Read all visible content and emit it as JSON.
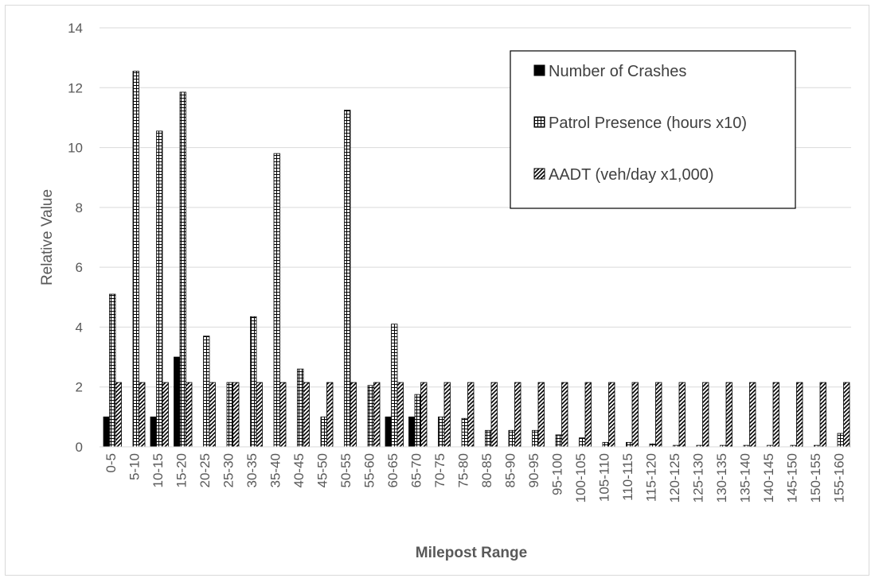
{
  "chart_data": {
    "type": "bar",
    "title": "",
    "xlabel": "Milepost Range",
    "ylabel": "Relative Value",
    "ylim": [
      0,
      14
    ],
    "yticks": [
      "0",
      "2",
      "4",
      "6",
      "8",
      "10",
      "12",
      "14"
    ],
    "grid": true,
    "legend_position": "top-right",
    "categories": [
      "0-5",
      "5-10",
      "10-15",
      "15-20",
      "20-25",
      "25-30",
      "30-35",
      "35-40",
      "40-45",
      "45-50",
      "50-55",
      "55-60",
      "60-65",
      "65-70",
      "70-75",
      "75-80",
      "80-85",
      "85-90",
      "90-95",
      "95-100",
      "100-105",
      "105-110",
      "110-115",
      "115-120",
      "120-125",
      "125-130",
      "130-135",
      "135-140",
      "140-145",
      "145-150",
      "150-155",
      "155-160"
    ],
    "series": [
      {
        "name": "Number of Crashes",
        "pattern": "solid",
        "color": "#000000",
        "values": [
          1,
          0,
          1,
          3,
          0,
          0,
          0,
          0,
          0,
          0,
          0,
          0,
          1,
          1,
          0,
          0,
          0,
          0,
          0,
          0,
          0,
          0,
          0,
          0,
          0,
          0,
          0,
          0,
          0,
          0,
          0,
          0
        ]
      },
      {
        "name": "Patrol Presence (hours x10)",
        "pattern": "grid",
        "color": "#000000",
        "values": [
          5.1,
          12.55,
          10.55,
          11.85,
          3.7,
          2.15,
          4.35,
          9.8,
          2.6,
          1.0,
          11.25,
          2.05,
          4.1,
          1.75,
          1.0,
          0.95,
          0.55,
          0.55,
          0.55,
          0.4,
          0.3,
          0.15,
          0.15,
          0.1,
          0.05,
          0.05,
          0.05,
          0.05,
          0.05,
          0.05,
          0.05,
          0.45
        ]
      },
      {
        "name": "AADT (veh/day x1,000)",
        "pattern": "diagonal",
        "color": "#000000",
        "values": [
          2.15,
          2.15,
          2.15,
          2.15,
          2.15,
          2.15,
          2.15,
          2.15,
          2.15,
          2.15,
          2.15,
          2.15,
          2.15,
          2.15,
          2.15,
          2.15,
          2.15,
          2.15,
          2.15,
          2.15,
          2.15,
          2.15,
          2.15,
          2.15,
          2.15,
          2.15,
          2.15,
          2.15,
          2.15,
          2.15,
          2.15,
          2.15
        ]
      }
    ]
  }
}
